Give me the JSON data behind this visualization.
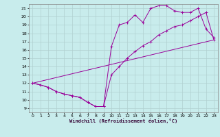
{
  "title": "",
  "xlabel": "Windchill (Refroidissement éolien,°C)",
  "background_color": "#c8ecec",
  "grid_color": "#b0d0d0",
  "line_color": "#990099",
  "xlim": [
    -0.5,
    23.5
  ],
  "ylim": [
    8.5,
    21.5
  ],
  "yticks": [
    9,
    10,
    11,
    12,
    13,
    14,
    15,
    16,
    17,
    18,
    19,
    20,
    21
  ],
  "xticks": [
    0,
    1,
    2,
    3,
    4,
    5,
    6,
    7,
    8,
    9,
    10,
    11,
    12,
    13,
    14,
    15,
    16,
    17,
    18,
    19,
    20,
    21,
    22,
    23
  ],
  "series1_x": [
    0,
    1,
    2,
    3,
    4,
    5,
    6,
    7,
    8,
    9,
    10,
    11,
    12,
    13,
    14,
    15,
    16,
    17,
    18,
    19,
    20,
    21,
    22,
    23
  ],
  "series1_y": [
    12.0,
    11.8,
    11.5,
    11.0,
    10.7,
    10.5,
    10.3,
    9.7,
    9.2,
    9.2,
    16.4,
    19.0,
    19.3,
    20.2,
    19.3,
    21.0,
    21.3,
    21.3,
    20.7,
    20.5,
    20.5,
    21.0,
    18.5,
    17.5
  ],
  "series2_x": [
    0,
    1,
    2,
    3,
    4,
    5,
    6,
    7,
    8,
    9,
    10,
    11,
    12,
    13,
    14,
    15,
    16,
    17,
    18,
    19,
    20,
    21,
    22,
    23
  ],
  "series2_y": [
    12.0,
    11.8,
    11.5,
    11.0,
    10.7,
    10.5,
    10.3,
    9.7,
    9.2,
    9.2,
    13.0,
    14.0,
    15.0,
    15.8,
    16.5,
    17.0,
    17.8,
    18.3,
    18.8,
    19.0,
    19.5,
    20.0,
    20.5,
    17.2
  ],
  "series3_x": [
    0,
    23
  ],
  "series3_y": [
    12.0,
    17.2
  ],
  "marker": "+"
}
